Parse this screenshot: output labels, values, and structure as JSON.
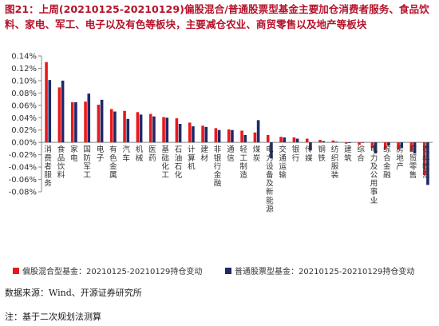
{
  "header": {
    "title": "图21：上周(20210125-20210129)偏股混合/普通股票型基金主要加仓消费者服务、食品饮料、家电、军工、电子以及有色等板块，主要减仓农业、商贸零售以及地产等板块"
  },
  "chart_data": {
    "type": "bar",
    "title": "",
    "xlabel": "",
    "ylabel": "",
    "ylim": [
      -0.08,
      0.14
    ],
    "yticks": [
      "-0.08%",
      "-0.06%",
      "-0.04%",
      "-0.02%",
      "0.00%",
      "0.02%",
      "0.04%",
      "0.06%",
      "0.08%",
      "0.10%",
      "0.12%",
      "0.14%"
    ],
    "ytick_values": [
      -0.08,
      -0.06,
      -0.04,
      -0.02,
      0.0,
      0.02,
      0.04,
      0.06,
      0.08,
      0.1,
      0.12,
      0.14
    ],
    "categories": [
      "消费者服务",
      "食品饮料",
      "家电",
      "国防军工",
      "电子",
      "有色金属",
      "汽车",
      "机械",
      "医药",
      "基础化工",
      "石油石化",
      "计算机",
      "建材",
      "非银行金融",
      "通信",
      "轻工制造",
      "煤炭",
      "电力设备及新能源",
      "交通运输",
      "银行",
      "传媒",
      "钢铁",
      "纺织服装",
      "建筑",
      "综合",
      "电力及公用事业",
      "综合金融",
      "房地产",
      "商贸零售",
      "农林牧渔"
    ],
    "series": [
      {
        "name": "偏股混合型基金：20210125-20210129持仓变动",
        "color": "#e8191d",
        "values": [
          0.13,
          0.089,
          0.065,
          0.066,
          0.061,
          0.054,
          0.051,
          0.049,
          0.046,
          0.041,
          0.039,
          0.032,
          0.027,
          0.023,
          0.021,
          0.019,
          0.016,
          0.012,
          0.009,
          0.008,
          0.006,
          0.004,
          0.003,
          -0.002,
          -0.004,
          -0.009,
          -0.011,
          -0.012,
          -0.015,
          -0.053
        ]
      },
      {
        "name": "普通股票型基金：20210125-20210129持仓变动",
        "color": "#1f2a6b",
        "values": [
          0.101,
          0.1,
          0.065,
          0.079,
          0.069,
          0.05,
          0.038,
          0.045,
          0.042,
          0.04,
          0.03,
          0.026,
          0.025,
          0.02,
          0.02,
          0.012,
          0.036,
          -0.026,
          0.008,
          0.006,
          -0.013,
          0.002,
          0.001,
          -0.001,
          0.0,
          -0.018,
          -0.005,
          -0.009,
          -0.018,
          -0.069
        ]
      }
    ],
    "legend_position": "bottom",
    "grid": false
  },
  "footer": {
    "source": "数据来源：Wind、开源证券研究所",
    "note": "注：基于二次规划法测算"
  }
}
